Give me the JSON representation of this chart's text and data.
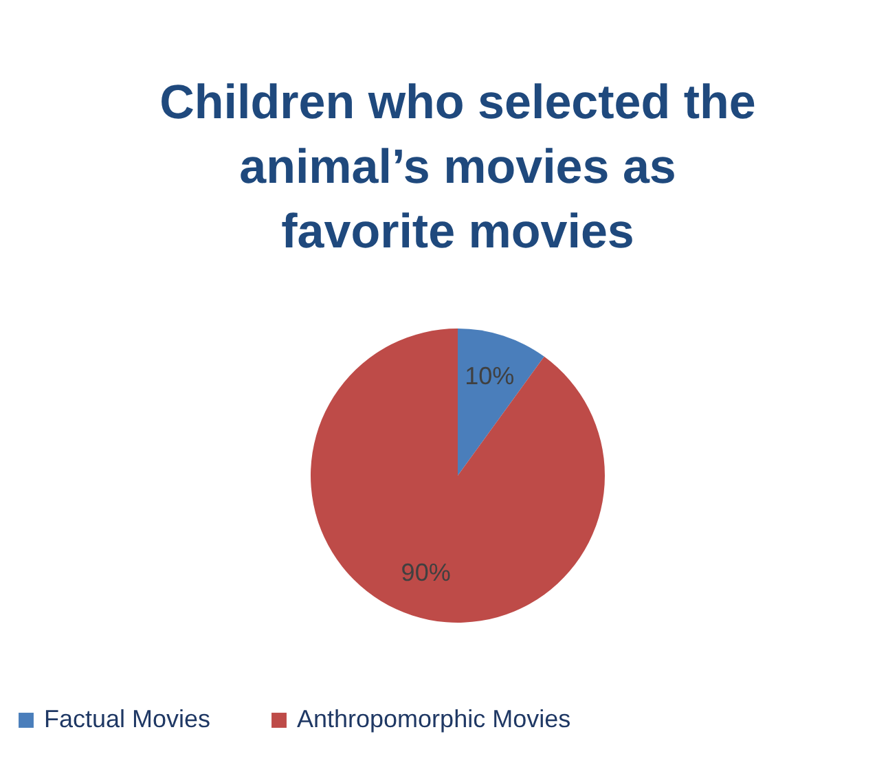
{
  "chart_data": {
    "type": "pie",
    "title": "Children who selected the\nanimal’s movies as\nfavorite movies",
    "categories": [
      "Factual Movies",
      "Anthropomorphic Movies"
    ],
    "values": [
      10,
      90
    ],
    "colors": [
      "#4a7ebb",
      "#be4b48"
    ],
    "value_labels": [
      "10%",
      "90%"
    ],
    "legend": "bottom"
  }
}
